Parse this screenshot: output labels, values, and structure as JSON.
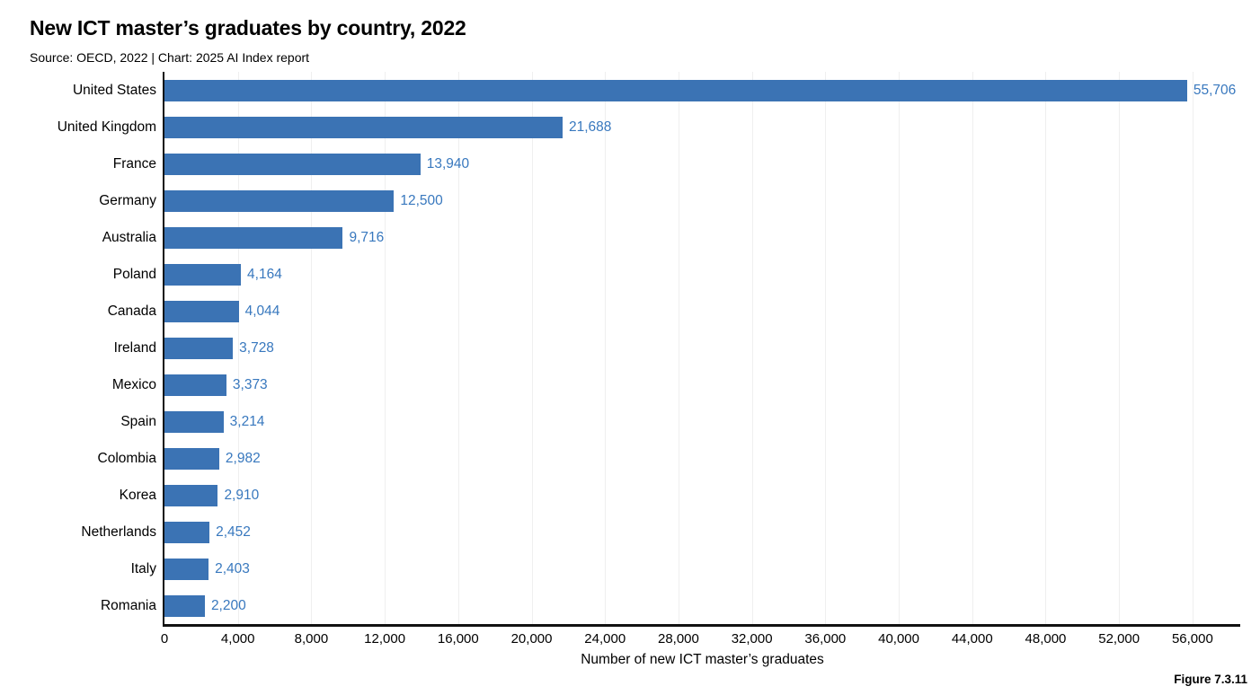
{
  "header": {
    "title": "New ICT master’s graduates by country, 2022",
    "subtitle": "Source: OECD, 2022 | Chart: 2025 AI Index report"
  },
  "chart_data": {
    "type": "bar",
    "orientation": "horizontal",
    "title": "New ICT master’s graduates by country, 2022",
    "subtitle": "Source: OECD, 2022 | Chart: 2025 AI Index report",
    "categories": [
      "United States",
      "United Kingdom",
      "France",
      "Germany",
      "Australia",
      "Poland",
      "Canada",
      "Ireland",
      "Mexico",
      "Spain",
      "Colombia",
      "Korea",
      "Netherlands",
      "Italy",
      "Romania"
    ],
    "values": [
      55706,
      21688,
      13940,
      12500,
      9716,
      4164,
      4044,
      3728,
      3373,
      3214,
      2982,
      2910,
      2452,
      2403,
      2200
    ],
    "value_labels": [
      "55,706",
      "21,688",
      "13,940",
      "12,500",
      "9,716",
      "4,164",
      "4,044",
      "3,728",
      "3,373",
      "3,214",
      "2,982",
      "2,910",
      "2,452",
      "2,403",
      "2,200"
    ],
    "xlabel": "Number of new ICT master’s graduates",
    "ylabel": "",
    "xlim": [
      0,
      58600
    ],
    "xticks": [
      0,
      4000,
      8000,
      12000,
      16000,
      20000,
      24000,
      28000,
      32000,
      36000,
      40000,
      44000,
      48000,
      52000,
      56000
    ],
    "xtick_labels": [
      "0",
      "4,000",
      "8,000",
      "12,000",
      "16,000",
      "20,000",
      "24,000",
      "28,000",
      "32,000",
      "36,000",
      "40,000",
      "44,000",
      "48,000",
      "52,000",
      "56,000"
    ],
    "grid": true,
    "legend": "none",
    "bar_color": "#3b73b4",
    "value_label_color": "#3878be",
    "axis_color": "#111111",
    "gridline_color": "#efefef"
  },
  "footer": {
    "figure_label": "Figure 7.3.11"
  }
}
